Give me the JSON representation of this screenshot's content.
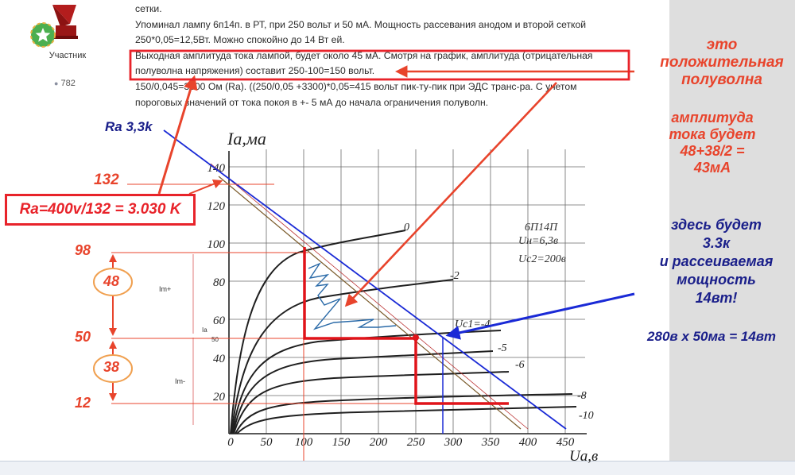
{
  "user": {
    "role": "Участник",
    "post_count": "782"
  },
  "post": {
    "lines": [
      "сетки.",
      "Упоминал лампу 6п14п. в РТ, при 250 вольт и 50 мА. Мощность рассевания анодом и второй сеткой",
      "250*0,05=12,5Вт. Можно спокойно до 14 Вт ей.",
      "Выходная амплитуда тока  лампой, будет около 45 мА. Смотря на график, амплитуда (отрицательная",
      "полуволна напряжения) составит 250-100=150 вольт.",
      "150/0,045=3300 Ом (Ra). ((250/0,05 +3300)*0,05=415 вольт пик-ту-пик при ЭДС транс-ра. С учетом",
      "пороговых значений от тока покоя в +- 5 мА до начала ограничения полуволн."
    ]
  },
  "graph": {
    "y_axis_label": "Ia,ма",
    "x_axis_label": "Ua,в",
    "x_ticks": [
      "0",
      "50",
      "100",
      "150",
      "200",
      "250",
      "300",
      "350",
      "400",
      "450"
    ],
    "y_ticks": [
      "20",
      "40",
      "60",
      "80",
      "100",
      "120",
      "140"
    ],
    "tube_label": "6П14П",
    "uh_label": "Uн=6,3в",
    "uc2_label": "Uc2=200в",
    "curve_labels": [
      "0",
      "-2",
      "Uc1=-4",
      "-5",
      "-6",
      "-8",
      "-10"
    ],
    "im_plus": "Im+",
    "im_minus": "Im-",
    "ia_label": "Ia",
    "ia_value": "50"
  },
  "annotations": {
    "ra_blue": "Ra 3,3k",
    "n132": "132",
    "ra_formula": "Ra=400v/132 = 3.030 K",
    "n98": "98",
    "n48": "48",
    "n50": "50",
    "n38": "38",
    "n12": "12",
    "positive_half": [
      "это",
      "положительная",
      "полуволна"
    ],
    "amplitude": [
      "амплитуда",
      "тока будет",
      "48+38/2 =",
      "43мА"
    ],
    "here": [
      "здесь будет",
      "3.3к",
      "и рассеиваемая",
      "мощность",
      "14вт!"
    ],
    "power": "280в х 50ма = 14вт"
  },
  "colors": {
    "annotation_red": "#e8442c",
    "annotation_blue": "#1a1f8a",
    "load_line_blue": "#1a2ad6",
    "operating_path_red": "#e0141a",
    "box_red": "#e8232a",
    "circle_orange": "#f0a050",
    "scribble_blue": "#2a6aa8"
  }
}
